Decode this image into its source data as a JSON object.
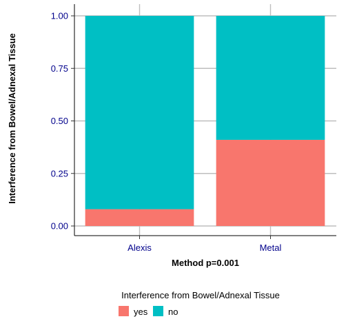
{
  "chart_data": {
    "type": "bar",
    "stacked": true,
    "categories": [
      "Alexis",
      "Metal"
    ],
    "series": [
      {
        "name": "yes",
        "values": [
          0.08,
          0.41
        ],
        "color": "#F8766D"
      },
      {
        "name": "no",
        "values": [
          0.92,
          0.59
        ],
        "color": "#00BFC4"
      }
    ],
    "xlabel": "Method p=0.001",
    "ylabel": "Interference from Bowel/Adnexal Tissue",
    "ylim": [
      0,
      1
    ],
    "yticks": [
      "0.00",
      "0.25",
      "0.50",
      "0.75",
      "1.00"
    ],
    "ytick_values": [
      0,
      0.25,
      0.5,
      0.75,
      1
    ],
    "grid": true,
    "legend": {
      "title": "Interference from Bowel/Adnexal Tissue",
      "placement": "bottom"
    },
    "colors": {
      "tick_label": "#00008B",
      "grid": "#BEBEBE",
      "axis": "#000000"
    }
  }
}
